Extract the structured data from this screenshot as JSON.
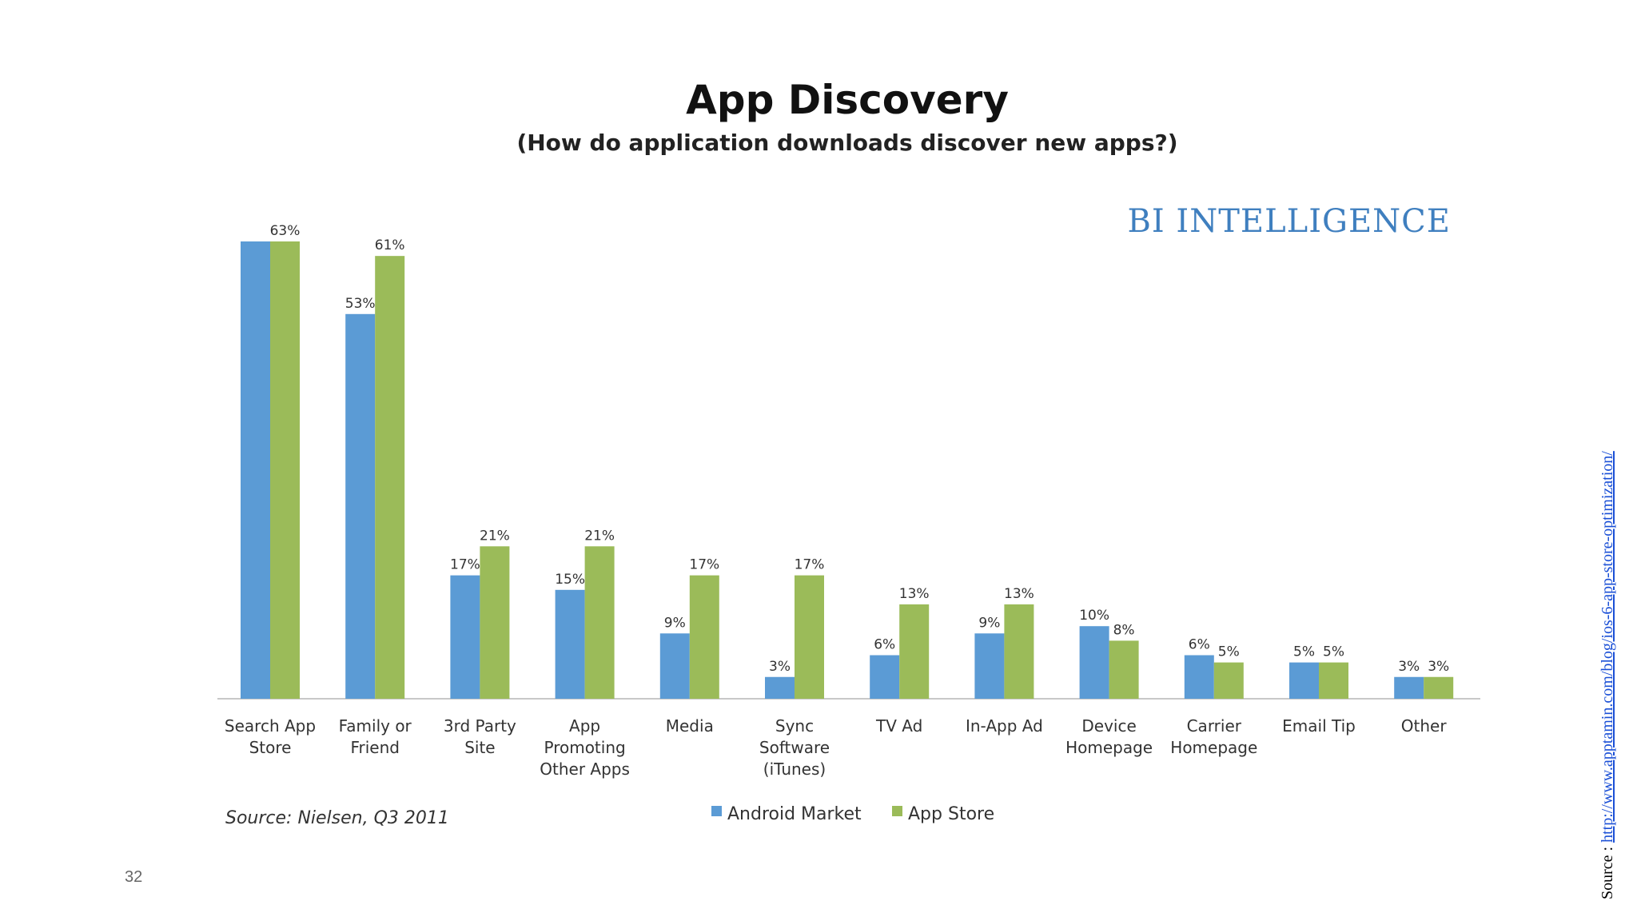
{
  "slide": {
    "page_number": "32",
    "source_prefix": "Source : ",
    "source_link": "http://www.apptamin.com/blog/ios-6-app-store-optimization/"
  },
  "chart_data": {
    "type": "bar",
    "title": "App Discovery",
    "subtitle": "(How do application downloads discover new apps?)",
    "brand": "BI INTELLIGENCE",
    "source_note": "Source: Nielsen, Q3 2011",
    "ylim": [
      0,
      63
    ],
    "grid": false,
    "legend_placement": "bottom",
    "colors": {
      "Android Market": "#5b9bd5",
      "App Store": "#9bbb59"
    },
    "categories": [
      [
        "Search App",
        "Store"
      ],
      [
        "Family or",
        "Friend"
      ],
      [
        "3rd Party",
        "Site"
      ],
      [
        "App",
        "Promoting",
        "Other Apps"
      ],
      [
        "Media"
      ],
      [
        "Sync",
        "Software",
        "(iTunes)"
      ],
      [
        "TV Ad"
      ],
      [
        "In-App Ad"
      ],
      [
        "Device",
        "Homepage"
      ],
      [
        "Carrier",
        "Homepage"
      ],
      [
        "Email Tip"
      ],
      [
        "Other"
      ]
    ],
    "series": [
      {
        "name": "Android Market",
        "values": [
          63,
          53,
          17,
          15,
          9,
          3,
          6,
          9,
          10,
          6,
          5,
          3
        ],
        "labels": [
          "",
          "53%",
          "17%",
          "15%",
          "9%",
          "3%",
          "6%",
          "9%",
          "10%",
          "6%",
          "5%",
          "3%"
        ]
      },
      {
        "name": "App Store",
        "values": [
          63,
          61,
          21,
          21,
          17,
          17,
          13,
          13,
          8,
          5,
          5,
          3
        ],
        "labels": [
          "63%",
          "61%",
          "21%",
          "21%",
          "17%",
          "17%",
          "13%",
          "13%",
          "8%",
          "5%",
          "5%",
          "3%"
        ]
      }
    ]
  }
}
